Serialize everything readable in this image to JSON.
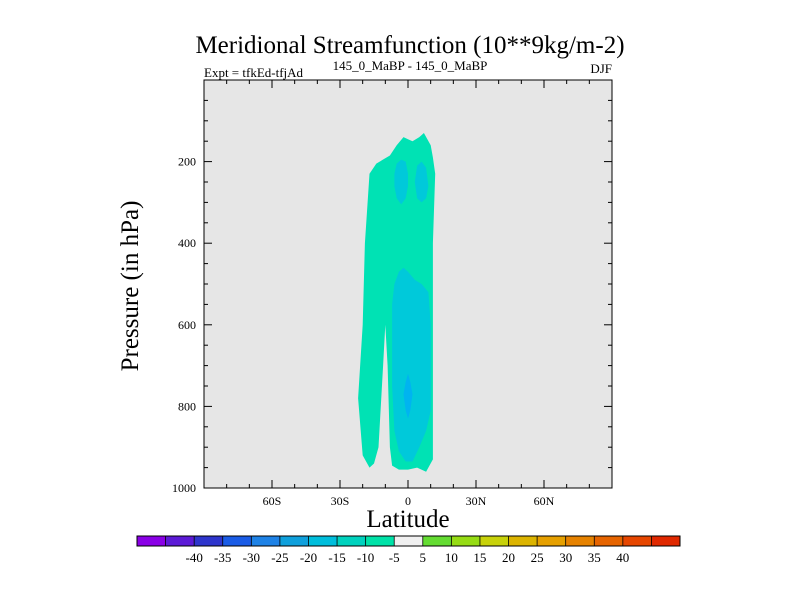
{
  "chart_data": {
    "type": "contour",
    "title": "Meridional Streamfunction (10**9kg/m-2)",
    "left_label": "Expt = tfkEd-tfjAd",
    "center_label": "145_0_MaBP - 145_0_MaBP",
    "right_label": "DJF",
    "xlabel": "Latitude",
    "ylabel": "Pressure (in hPa)",
    "xlim": [
      -90,
      90
    ],
    "ylim": [
      1000,
      0
    ],
    "x_ticks": [
      {
        "value": -60,
        "label": "60S"
      },
      {
        "value": -30,
        "label": "30S"
      },
      {
        "value": 0,
        "label": "0"
      },
      {
        "value": 30,
        "label": "30N"
      },
      {
        "value": 60,
        "label": "60N"
      }
    ],
    "y_ticks": [
      {
        "value": 200,
        "label": "200"
      },
      {
        "value": 400,
        "label": "400"
      },
      {
        "value": 600,
        "label": "600"
      },
      {
        "value": 800,
        "label": "800"
      },
      {
        "value": 1000,
        "label": "1000"
      }
    ],
    "background_color": "#e6e6e6",
    "regions": [
      {
        "level": "-10 to -5",
        "color": "#00e2b4",
        "polygon": [
          [
            -17,
            950
          ],
          [
            -20,
            920
          ],
          [
            -22,
            780
          ],
          [
            -20,
            600
          ],
          [
            -19,
            400
          ],
          [
            -17,
            230
          ],
          [
            -14,
            205
          ],
          [
            -8,
            185
          ],
          [
            -5,
            160
          ],
          [
            -2,
            140
          ],
          [
            0,
            145
          ],
          [
            2,
            150
          ],
          [
            5,
            140
          ],
          [
            7,
            130
          ],
          [
            10,
            160
          ],
          [
            11,
            190
          ],
          [
            12,
            230
          ],
          [
            11,
            400
          ],
          [
            11,
            600
          ],
          [
            11,
            810
          ],
          [
            11,
            930
          ],
          [
            8,
            960
          ],
          [
            4,
            950
          ],
          [
            0,
            955
          ],
          [
            -4,
            955
          ],
          [
            -7,
            945
          ],
          [
            -8,
            900
          ],
          [
            -9,
            700
          ],
          [
            -10,
            600
          ],
          [
            -11,
            700
          ],
          [
            -13,
            900
          ],
          [
            -15,
            940
          ]
        ]
      },
      {
        "level": "-15 to -10",
        "color": "#00c9da",
        "polygon": [
          [
            -6,
            230
          ],
          [
            -5,
            205
          ],
          [
            -3,
            195
          ],
          [
            -1,
            200
          ],
          [
            0,
            230
          ],
          [
            0,
            260
          ],
          [
            -1,
            290
          ],
          [
            -3,
            305
          ],
          [
            -5,
            290
          ],
          [
            -6,
            260
          ]
        ]
      },
      {
        "level": "-15 to -10",
        "color": "#00c9da",
        "polygon": [
          [
            4,
            210
          ],
          [
            6,
            200
          ],
          [
            8,
            215
          ],
          [
            9,
            260
          ],
          [
            8,
            290
          ],
          [
            6,
            300
          ],
          [
            4,
            290
          ],
          [
            3,
            250
          ]
        ]
      },
      {
        "level": "-15 to -10",
        "color": "#00c9da",
        "polygon": [
          [
            -6,
            500
          ],
          [
            -4,
            470
          ],
          [
            -2,
            460
          ],
          [
            0,
            470
          ],
          [
            3,
            490
          ],
          [
            6,
            500
          ],
          [
            9,
            520
          ],
          [
            10,
            600
          ],
          [
            10,
            700
          ],
          [
            10,
            810
          ],
          [
            8,
            860
          ],
          [
            5,
            900
          ],
          [
            2,
            935
          ],
          [
            -1,
            935
          ],
          [
            -4,
            910
          ],
          [
            -6,
            860
          ],
          [
            -7,
            750
          ],
          [
            -7,
            650
          ],
          [
            -7,
            550
          ]
        ]
      },
      {
        "level": "-20 to -15",
        "color": "#00b4f0",
        "polygon": [
          [
            -2,
            770
          ],
          [
            -1,
            740
          ],
          [
            0,
            720
          ],
          [
            1,
            740
          ],
          [
            2,
            770
          ],
          [
            1,
            810
          ],
          [
            0,
            830
          ],
          [
            -1,
            810
          ]
        ]
      }
    ],
    "colorbar": {
      "colors": [
        "#8a00e6",
        "#5c1ad6",
        "#2e35cc",
        "#1a5ce6",
        "#1e82e6",
        "#0fa0dc",
        "#00bedc",
        "#00d2be",
        "#00e2a8",
        "#f0f0f0",
        "#64dc32",
        "#96dc14",
        "#c8d20a",
        "#dcb400",
        "#e6a000",
        "#e68200",
        "#e66400",
        "#e64600",
        "#e02800"
      ],
      "labels": [
        "-40",
        "-35",
        "-30",
        "-25",
        "-20",
        "-15",
        "-10",
        "-5",
        "5",
        "10",
        "15",
        "20",
        "25",
        "30",
        "35",
        "40"
      ]
    }
  }
}
